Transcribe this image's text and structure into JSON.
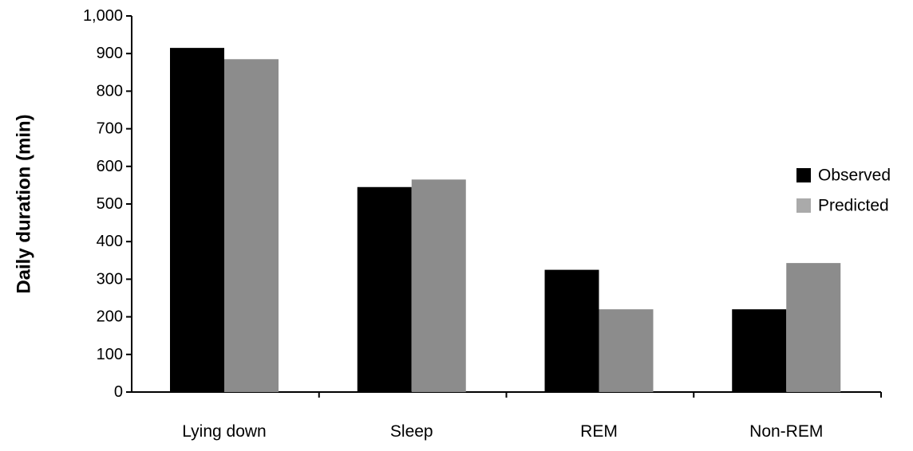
{
  "chart_data": {
    "type": "bar",
    "title": "",
    "xlabel": "",
    "ylabel": "Daily duration (min)",
    "ylim": [
      0,
      1000
    ],
    "yticks": [
      0,
      100,
      200,
      300,
      400,
      500,
      600,
      700,
      800,
      900,
      1000
    ],
    "ytick_labels": [
      "0",
      "100",
      "200",
      "300",
      "400",
      "500",
      "600",
      "700",
      "800",
      "900",
      "1,000"
    ],
    "categories": [
      "Lying down",
      "Sleep",
      "REM",
      "Non-REM"
    ],
    "series": [
      {
        "name": "Observed",
        "color": "#000000",
        "values": [
          915,
          545,
          325,
          220
        ]
      },
      {
        "name": "Predicted",
        "color": "#8c8c8c",
        "values": [
          885,
          565,
          220,
          343
        ]
      }
    ],
    "legend_position": "right",
    "legend_swatch_colors": [
      "#000000",
      "#aaaaaa"
    ],
    "grid": false
  }
}
